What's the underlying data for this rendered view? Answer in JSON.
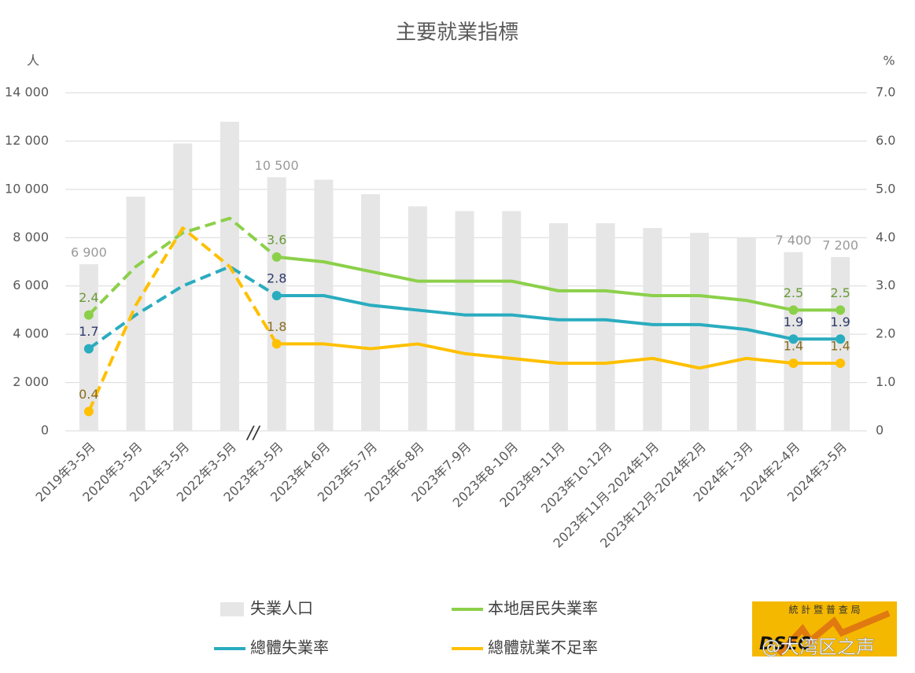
{
  "chart_data": {
    "type": "combo",
    "title": "主要就業指標",
    "y_label": "人",
    "y2_label": "%",
    "categories": [
      "2019年3-5月",
      "2020年3-5月",
      "2021年3-5月",
      "2022年3-5月",
      "2023年3-5月",
      "2023年4-6月",
      "2023年5-7月",
      "2023年6-8月",
      "2023年7-9月",
      "2023年8-10月",
      "2023年9-11月",
      "2023年10-12月",
      "2023年11月-2024年1月",
      "2023年12月-2024年2月",
      "2024年1-3月",
      "2024年2-4月",
      "2024年3-5月"
    ],
    "series": [
      {
        "name": "失業人口",
        "type": "bar",
        "axis": "y",
        "color": "#e6e6e6",
        "label_color": "#9a9a9a",
        "values": [
          6900,
          9700,
          11900,
          12800,
          10500,
          10400,
          9800,
          9300,
          9100,
          9100,
          8600,
          8600,
          8400,
          8200,
          8000,
          7400,
          7200
        ],
        "value_labels": [
          "6 900",
          null,
          null,
          null,
          "10 500",
          null,
          null,
          null,
          null,
          null,
          null,
          null,
          null,
          null,
          null,
          "7 400",
          "7 200"
        ]
      },
      {
        "name": "總體失業率",
        "type": "line",
        "axis": "y2",
        "color": "#2aacbf",
        "label_color": "#2d3a6a",
        "values": [
          1.7,
          2.4,
          3.0,
          3.4,
          2.8,
          2.8,
          2.6,
          2.5,
          2.4,
          2.4,
          2.3,
          2.3,
          2.2,
          2.2,
          2.1,
          1.9,
          1.9
        ]
      },
      {
        "name": "本地居民失業率",
        "type": "line",
        "axis": "y2",
        "color": "#8cd04a",
        "label_color": "#6a9a3a",
        "values": [
          2.4,
          3.4,
          4.1,
          4.4,
          3.6,
          3.5,
          3.3,
          3.1,
          3.1,
          3.1,
          2.9,
          2.9,
          2.8,
          2.8,
          2.7,
          2.5,
          2.5
        ]
      },
      {
        "name": "總體就業不足率",
        "type": "line",
        "axis": "y2",
        "color": "#ffc000",
        "label_color": "#8a6d1f",
        "values": [
          0.4,
          2.6,
          4.2,
          3.4,
          1.8,
          1.8,
          1.7,
          1.8,
          1.6,
          1.5,
          1.4,
          1.4,
          1.5,
          1.3,
          1.5,
          1.4,
          1.4
        ]
      }
    ],
    "labeled_points": [
      0,
      4,
      15,
      16
    ],
    "dash_until": 4,
    "break_mark": "//",
    "ylim": [
      0,
      14000
    ],
    "yticks": [
      0,
      {
        "value": 2000,
        "label": "2 000"
      },
      {
        "value": 4000,
        "label": "4 000"
      },
      {
        "value": 6000,
        "label": "6 000"
      },
      {
        "value": 8000,
        "label": "8 000"
      },
      {
        "value": 10000,
        "label": "10 000"
      },
      {
        "value": 12000,
        "label": "12 000"
      },
      {
        "value": 14000,
        "label": "14 000"
      }
    ],
    "y2lim": [
      0,
      7
    ],
    "y2ticks": [
      0,
      {
        "value": 1,
        "label": "1.0"
      },
      {
        "value": 2,
        "label": "2.0"
      },
      {
        "value": 3,
        "label": "3.0"
      },
      {
        "value": 4,
        "label": "4.0"
      },
      {
        "value": 5,
        "label": "5.0"
      },
      {
        "value": 6,
        "label": "6.0"
      },
      {
        "value": 7,
        "label": "7.0"
      }
    ],
    "grid": true,
    "legend": "bottom",
    "logo_text": "統 計 暨 普 查 局",
    "logo_abbr": "DSEC",
    "watermark": "@大湾区之声"
  }
}
